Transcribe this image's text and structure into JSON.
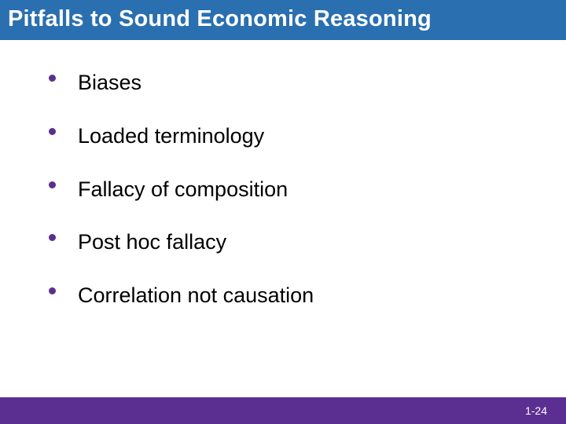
{
  "slide": {
    "title": "Pitfalls to Sound Economic Reasoning",
    "title_bg": "#2a6fb0",
    "title_color": "#ffffff",
    "title_fontsize": 29,
    "bullets": [
      "Biases",
      "Loaded terminology",
      "Fallacy of composition",
      "Post hoc fallacy",
      "Correlation not causation"
    ],
    "bullet_color": "#5b2f91",
    "bullet_text_color": "#000000",
    "bullet_fontsize": 27,
    "footer_bg": "#5b2f91",
    "page_number": "1-24",
    "page_number_color": "#ffffff",
    "background": "#ffffff"
  }
}
